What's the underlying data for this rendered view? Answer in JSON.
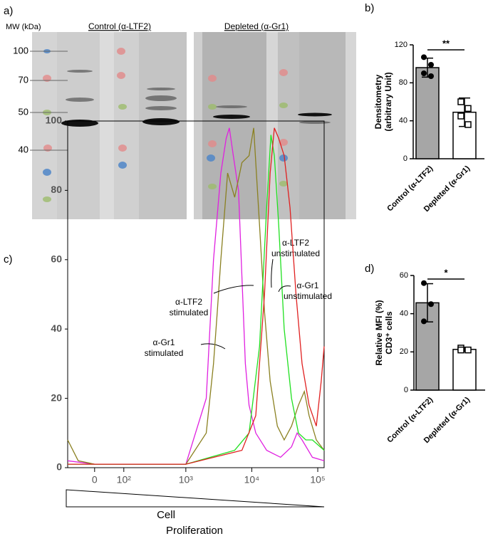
{
  "panel_a": {
    "label": "a)",
    "mw_label": "MW (kDa)",
    "mw_markers": [
      100,
      70,
      50,
      40
    ],
    "lanes": [
      "Control (α-LTF2)",
      "Depleted (α-Gr1)"
    ]
  },
  "chart_data": [
    {
      "type": "bar",
      "panel_label": "b)",
      "categories": [
        "Control (α-LTF2)",
        "Depleted (α-Gr1)"
      ],
      "values": [
        96,
        49
      ],
      "errors": [
        10,
        15
      ],
      "points": [
        [
          107,
          99,
          90,
          87
        ],
        [
          60,
          53,
          45,
          36
        ]
      ],
      "point_markers": [
        "circle",
        "square"
      ],
      "colors": [
        "#a6a6a6",
        "#ffffff"
      ],
      "ylabel": [
        "Densitometry",
        "(arbitrary Unit)"
      ],
      "ylim": [
        0,
        120
      ],
      "yticks": [
        0,
        40,
        80,
        120
      ],
      "significance": "**"
    },
    {
      "type": "line",
      "panel_label": "c)",
      "xscale": "biexponential",
      "xlim": [
        -90,
        125000
      ],
      "xticks": [
        0,
        {
          "value": 100,
          "label": "10²"
        },
        {
          "value": 1000,
          "label": "10³"
        },
        {
          "value": 10000,
          "label": "10⁴"
        },
        {
          "value": 100000,
          "label": "10⁵"
        }
      ],
      "ylim": [
        0,
        100
      ],
      "yticks": [
        0,
        20,
        40,
        60,
        80,
        100
      ],
      "x_label": [
        "Cell",
        "Proliferation"
      ],
      "series": [
        {
          "annotation": [
            "α-Gr1",
            "stimulated"
          ],
          "color": "#e020e0",
          "x": [
            -90,
            0,
            500,
            1000,
            2040,
            2630,
            3400,
            4100,
            4570,
            5250,
            6300,
            7100,
            8000,
            9100,
            11500,
            16800,
            27300,
            40000,
            48600,
            57800,
            83000,
            125000
          ],
          "values": [
            2,
            1,
            1,
            1,
            20,
            60,
            85,
            95,
            98,
            90,
            80,
            55,
            30,
            18,
            10,
            5,
            3,
            6,
            10,
            8,
            3,
            2
          ]
        },
        {
          "annotation": [
            "α-LTF2",
            "stimulated"
          ],
          "color": "#8a8020",
          "x": [
            -90,
            -50,
            0,
            1000,
            2040,
            2630,
            3000,
            3400,
            4300,
            5500,
            7100,
            9100,
            10700,
            13100,
            15600,
            19000,
            24400,
            31000,
            40000,
            51000,
            62600,
            74000,
            95000,
            125000
          ],
          "values": [
            8,
            2,
            1,
            1,
            10,
            30,
            45,
            60,
            85,
            78,
            88,
            90,
            98,
            70,
            45,
            25,
            12,
            8,
            12,
            18,
            22,
            15,
            8,
            5
          ]
        },
        {
          "annotation": [
            "α-LTF2",
            "unstimulated"
          ],
          "color": "#20e020",
          "x": [
            -90,
            1000,
            5500,
            9100,
            13100,
            16800,
            19500,
            22000,
            25600,
            31000,
            40000,
            51000,
            66000,
            83000,
            125000
          ],
          "values": [
            1,
            1,
            5,
            10,
            35,
            75,
            96,
            90,
            70,
            40,
            20,
            10,
            8,
            8,
            5
          ]
        },
        {
          "annotation": [
            "α-Gr1",
            "unstimulated"
          ],
          "color": "#e02020",
          "x": [
            -90,
            1000,
            7100,
            11500,
            15600,
            19000,
            22000,
            25600,
            31000,
            38000,
            46800,
            57800,
            74000,
            95000,
            113000,
            125000
          ],
          "values": [
            1,
            1,
            5,
            15,
            50,
            85,
            98,
            95,
            90,
            75,
            50,
            30,
            18,
            12,
            25,
            35
          ]
        }
      ]
    },
    {
      "type": "bar",
      "panel_label": "d)",
      "categories": [
        "Control (α-LTF2)",
        "Depleted (α-Gr1)"
      ],
      "values": [
        45.7,
        21.3
      ],
      "errors": [
        10,
        1
      ],
      "points": [
        [
          56,
          45,
          36
        ],
        [
          22,
          21,
          21
        ]
      ],
      "point_markers": [
        "circle",
        "square"
      ],
      "colors": [
        "#a6a6a6",
        "#ffffff"
      ],
      "ylabel": [
        "Relative MFI (%)",
        "CD3⁺ cells"
      ],
      "ylim": [
        0,
        60
      ],
      "yticks": [
        0,
        20,
        40,
        60
      ],
      "significance": "*"
    }
  ]
}
